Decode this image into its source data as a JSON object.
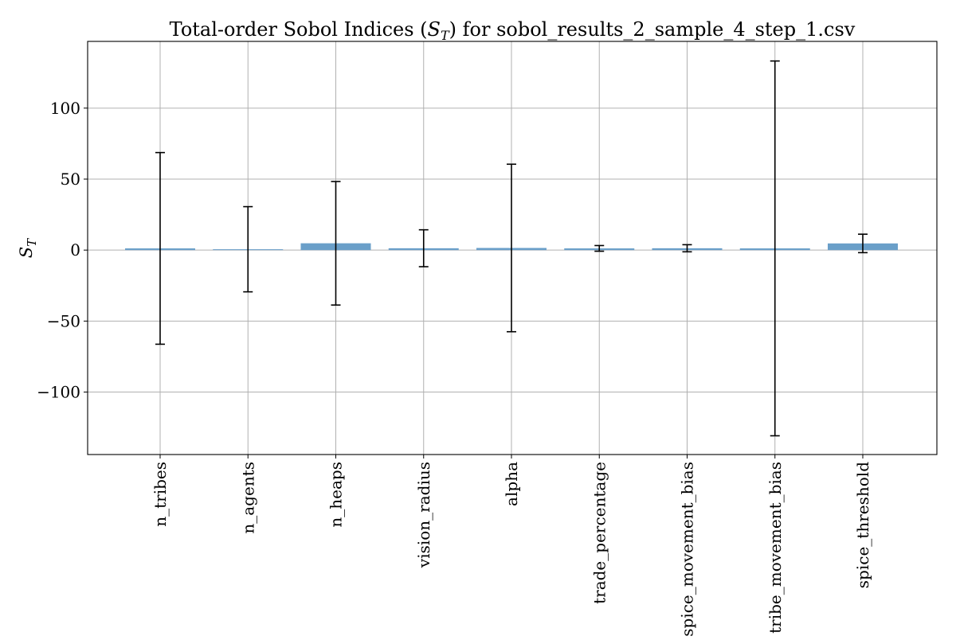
{
  "chart_data": {
    "type": "bar",
    "title": "Total-order Sobol Indices (S_T) for sobol_results_2_sample_4_step_1.csv",
    "title_main": "Total-order Sobol Indices (",
    "title_sym": "S",
    "title_sub": "T",
    "title_tail": ") for sobol_results_2_sample_4_step_1.csv",
    "xlabel": "",
    "ylabel": "S_T",
    "ylabel_sym": "S",
    "ylabel_sub": "T",
    "categories": [
      "n_tribes",
      "n_agents",
      "n_heaps",
      "vision_radius",
      "alpha",
      "trade_percentage",
      "spice_movement_bias",
      "tribe_movement_bias",
      "spice_threshold"
    ],
    "values": [
      1.2,
      0.6,
      4.8,
      1.3,
      1.5,
      1.2,
      1.3,
      1.2,
      4.7
    ],
    "error": [
      67.5,
      30.0,
      43.5,
      13.0,
      59.0,
      2.0,
      2.5,
      132.0,
      6.5
    ],
    "ylim": [
      -144,
      147
    ],
    "yticks": [
      -100,
      -50,
      0,
      50,
      100
    ],
    "ytick_labels": [
      "−100",
      "−50",
      "0",
      "50",
      "100"
    ],
    "grid": true,
    "bar_color": "#6a9fc9",
    "error_color": "#000000",
    "grid_color": "#b0b0b0"
  }
}
